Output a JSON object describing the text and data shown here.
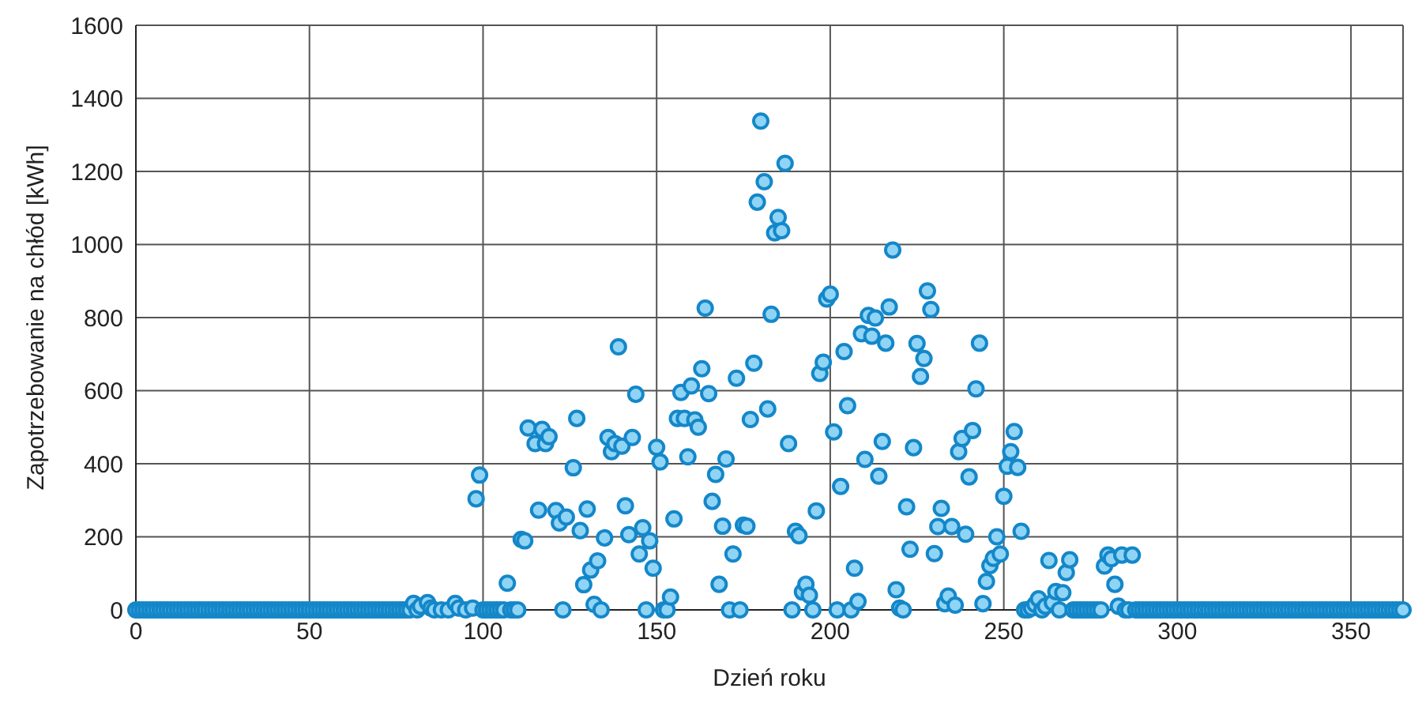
{
  "chart_data": {
    "type": "scatter",
    "xlabel": "Dzień roku",
    "ylabel": "Zapotrzebowanie na chłód [kWh]",
    "xlim": [
      0,
      365
    ],
    "xticks": [
      0,
      50,
      100,
      150,
      200,
      250,
      300,
      350
    ],
    "ylim": [
      0,
      1600
    ],
    "yticks": [
      0,
      200,
      400,
      600,
      800,
      1000,
      1200,
      1400,
      1600
    ],
    "grid": true,
    "marker": "circle",
    "series": [
      {
        "color": "#8fd4f5",
        "x": [
          0,
          1,
          2,
          3,
          4,
          5,
          6,
          7,
          8,
          9,
          10,
          11,
          12,
          13,
          14,
          15,
          16,
          17,
          18,
          19,
          20,
          21,
          22,
          23,
          24,
          25,
          26,
          27,
          28,
          29,
          30,
          31,
          32,
          33,
          34,
          35,
          36,
          37,
          38,
          39,
          40,
          41,
          42,
          43,
          44,
          45,
          46,
          47,
          48,
          49,
          50,
          51,
          52,
          53,
          54,
          55,
          56,
          57,
          58,
          59,
          60,
          61,
          62,
          63,
          64,
          65,
          66,
          67,
          68,
          69,
          70,
          71,
          72,
          73,
          74,
          75,
          76,
          77,
          78,
          79,
          80,
          81,
          82,
          84,
          85,
          86,
          88,
          90,
          92,
          93,
          95,
          97,
          98,
          99,
          100,
          101,
          102,
          103,
          104,
          105,
          106,
          107,
          108,
          109,
          110,
          111,
          112,
          113,
          115,
          116,
          117,
          118,
          119,
          121,
          122,
          123,
          124,
          126,
          127,
          128,
          129,
          130,
          131,
          132,
          133,
          134,
          135,
          136,
          137,
          138,
          139,
          140,
          141,
          142,
          143,
          144,
          145,
          146,
          147,
          148,
          149,
          150,
          151,
          152,
          153,
          154,
          155,
          156,
          157,
          158,
          159,
          160,
          161,
          162,
          163,
          164,
          165,
          166,
          167,
          168,
          169,
          170,
          171,
          172,
          173,
          174,
          175,
          176,
          177,
          178,
          179,
          180,
          181,
          182,
          183,
          184,
          185,
          186,
          187,
          188,
          189,
          190,
          191,
          192,
          193,
          194,
          195,
          196,
          197,
          198,
          199,
          200,
          201,
          202,
          203,
          204,
          205,
          206,
          207,
          208,
          209,
          210,
          211,
          212,
          213,
          214,
          215,
          216,
          217,
          218,
          219,
          220,
          221,
          222,
          223,
          224,
          225,
          226,
          227,
          228,
          229,
          230,
          231,
          232,
          233,
          234,
          235,
          236,
          237,
          238,
          239,
          240,
          241,
          242,
          243,
          244,
          245,
          246,
          247,
          248,
          249,
          250,
          251,
          252,
          253,
          254,
          255,
          256,
          257,
          258,
          259,
          260,
          261,
          262,
          263,
          264,
          265,
          266,
          267,
          268,
          269,
          270,
          271,
          272,
          273,
          274,
          275,
          276,
          277,
          278,
          279,
          280,
          281,
          282,
          283,
          284,
          285,
          286,
          287,
          288,
          289,
          290,
          291,
          292,
          293,
          294,
          295,
          296,
          297,
          298,
          299,
          300,
          301,
          302,
          303,
          304,
          305,
          306,
          307,
          308,
          309,
          310,
          311,
          312,
          313,
          314,
          315,
          316,
          317,
          318,
          319,
          320,
          321,
          322,
          323,
          324,
          325,
          326,
          327,
          328,
          329,
          330,
          331,
          332,
          333,
          334,
          335,
          336,
          337,
          338,
          339,
          340,
          341,
          342,
          343,
          344,
          345,
          346,
          347,
          348,
          349,
          350,
          351,
          352,
          353,
          354,
          355,
          356,
          357,
          358,
          359,
          360,
          361,
          362,
          363,
          364,
          365
        ],
        "values": [
          0,
          0,
          0,
          0,
          0,
          0,
          0,
          0,
          0,
          0,
          0,
          0,
          0,
          0,
          0,
          0,
          0,
          0,
          0,
          0,
          0,
          0,
          0,
          0,
          0,
          0,
          0,
          0,
          0,
          0,
          0,
          0,
          0,
          0,
          0,
          0,
          0,
          0,
          0,
          0,
          0,
          0,
          0,
          0,
          0,
          0,
          0,
          0,
          0,
          0,
          0,
          0,
          0,
          0,
          0,
          0,
          0,
          0,
          0,
          0,
          0,
          0,
          0,
          0,
          0,
          0,
          0,
          0,
          0,
          0,
          0,
          0,
          0,
          0,
          0,
          0,
          0,
          0,
          0,
          0,
          18,
          0,
          10,
          20,
          5,
          0,
          0,
          0,
          18,
          5,
          0,
          5,
          304,
          369,
          0,
          0,
          0,
          0,
          0,
          0,
          0,
          73,
          0,
          0,
          0,
          193,
          189,
          498,
          455,
          273,
          494,
          455,
          474,
          272,
          238,
          0,
          254,
          389,
          524,
          217,
          69,
          276,
          109,
          15,
          134,
          0,
          197,
          472,
          433,
          455,
          720,
          448,
          285,
          206,
          472,
          590,
          153,
          225,
          0,
          189,
          114,
          445,
          405,
          0,
          0,
          35,
          249,
          524,
          595,
          524,
          419,
          613,
          520,
          500,
          660,
          826,
          592,
          297,
          371,
          70,
          229,
          413,
          0,
          153,
          634,
          0,
          232,
          229,
          521,
          675,
          1116,
          1338,
          1172,
          550,
          809,
          1032,
          1074,
          1038,
          1222,
          455,
          0,
          215,
          203,
          49,
          70,
          40,
          0,
          271,
          647,
          678,
          851,
          864,
          487,
          0,
          338,
          707,
          559,
          0,
          114,
          23,
          756,
          412,
          806,
          749,
          799,
          366,
          461,
          730,
          829,
          985,
          55,
          5,
          0,
          282,
          166,
          444,
          729,
          639,
          688,
          873,
          822,
          154,
          228,
          278,
          17,
          38,
          228,
          13,
          433,
          469,
          207,
          364,
          491,
          605,
          730,
          17,
          78,
          121,
          141,
          200,
          153,
          311,
          393,
          433,
          488,
          390,
          215,
          0,
          0,
          5,
          15,
          30,
          0,
          10,
          135,
          20,
          50,
          0,
          47,
          102,
          137,
          0,
          0,
          0,
          0,
          0,
          0,
          0,
          0,
          0,
          120,
          150,
          140,
          70,
          10,
          150,
          0,
          0,
          150,
          0,
          0,
          0,
          0,
          0,
          0,
          0,
          0,
          0,
          0,
          0,
          0,
          0,
          0,
          0,
          0,
          0,
          0,
          0,
          0,
          0,
          0,
          0,
          0,
          0,
          0,
          0,
          0,
          0,
          0,
          0,
          0,
          0,
          0,
          0,
          0,
          0,
          0,
          0,
          0,
          0,
          0,
          0,
          0,
          0,
          0,
          0,
          0,
          0,
          0,
          0,
          0,
          0,
          0,
          0,
          0,
          0,
          0,
          0,
          0,
          0,
          0,
          0,
          0,
          0,
          0,
          0,
          0,
          0,
          0,
          0,
          0,
          0,
          0,
          0,
          0,
          0,
          0
        ]
      }
    ]
  }
}
